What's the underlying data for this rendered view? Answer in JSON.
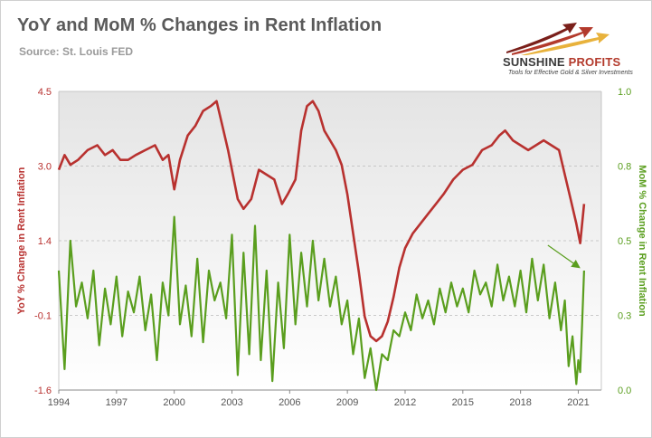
{
  "header": {
    "title": "YoY and MoM % Changes in Rent Inflation",
    "source": "Source: St. Louis FED"
  },
  "logo": {
    "word_main": "SUNSHINE",
    "word_accent": "PROFITS",
    "tagline": "Tools for Effective Gold & Silver Investments",
    "colors": {
      "arrow_dark": "#7a1f1a",
      "arrow_mid": "#b33a2c",
      "arrow_gold": "#e8b23c"
    }
  },
  "colors": {
    "yoy_line": "#b8312f",
    "mom_line": "#5a9e1e",
    "annotation_arrow": "#5a9e1e",
    "grid": "#bbbbbb",
    "plot_bg_top": "#e4e4e4",
    "plot_bg_bottom": "#ffffff"
  },
  "chart_data": {
    "type": "line",
    "title": "YoY and MoM % Changes in Rent Inflation",
    "xlabel": "",
    "ylabel": "YoY % Change in Rent Inflation",
    "y2label": "MoM % Change in Rent Inflation",
    "xlim": [
      1994,
      2022.2
    ],
    "ylim": [
      -1.6,
      4.5
    ],
    "y2lim": [
      0.0,
      1.0
    ],
    "x_ticks": [
      "1994",
      "1997",
      "2000",
      "2003",
      "2006",
      "2009",
      "2012",
      "2015",
      "2018",
      "2021"
    ],
    "y_ticks": [
      "4.5",
      "3.0",
      "1.4",
      "-0.1",
      "-1.6"
    ],
    "y2_ticks": [
      "1.0",
      "0.8",
      "0.5",
      "0.3",
      "0.0"
    ],
    "grid": "horizontal dashed",
    "annotation": "arrow pointing to latest MoM value",
    "series": [
      {
        "axis": "left",
        "x": [
          1994.0,
          1994.3,
          1994.6,
          1995.0,
          1995.5,
          1996.0,
          1996.4,
          1996.8,
          1997.2,
          1997.6,
          1998.0,
          1998.5,
          1999.0,
          1999.4,
          1999.7,
          2000.0,
          2000.3,
          2000.7,
          2001.1,
          2001.5,
          2001.9,
          2002.2,
          2002.5,
          2002.8,
          2003.0,
          2003.3,
          2003.6,
          2004.0,
          2004.4,
          2004.8,
          2005.2,
          2005.6,
          2005.9,
          2006.3,
          2006.6,
          2006.9,
          2007.2,
          2007.5,
          2007.8,
          2008.1,
          2008.4,
          2008.7,
          2009.0,
          2009.3,
          2009.6,
          2009.9,
          2010.2,
          2010.5,
          2010.8,
          2011.1,
          2011.4,
          2011.7,
          2012.0,
          2012.4,
          2012.8,
          2013.2,
          2013.6,
          2014.0,
          2014.5,
          2015.0,
          2015.5,
          2016.0,
          2016.5,
          2016.9,
          2017.2,
          2017.6,
          2018.0,
          2018.4,
          2018.8,
          2019.2,
          2019.6,
          2020.0,
          2020.3,
          2020.6,
          2020.9,
          2021.1,
          2021.3
        ],
        "values": [
          2.9,
          3.2,
          3.0,
          3.1,
          3.3,
          3.4,
          3.2,
          3.3,
          3.1,
          3.1,
          3.2,
          3.3,
          3.4,
          3.1,
          3.2,
          2.5,
          3.1,
          3.6,
          3.8,
          4.1,
          4.2,
          4.3,
          3.8,
          3.3,
          2.9,
          2.3,
          2.1,
          2.3,
          2.9,
          2.8,
          2.7,
          2.2,
          2.4,
          2.7,
          3.7,
          4.2,
          4.3,
          4.1,
          3.7,
          3.5,
          3.3,
          3.0,
          2.4,
          1.6,
          0.8,
          -0.1,
          -0.5,
          -0.6,
          -0.5,
          -0.2,
          0.3,
          0.9,
          1.3,
          1.6,
          1.8,
          2.0,
          2.2,
          2.4,
          2.7,
          2.9,
          3.0,
          3.3,
          3.4,
          3.6,
          3.7,
          3.5,
          3.4,
          3.3,
          3.4,
          3.5,
          3.4,
          3.3,
          2.8,
          2.3,
          1.8,
          1.4,
          2.2
        ]
      },
      {
        "axis": "right",
        "x": [
          1994.0,
          1994.3,
          1994.6,
          1994.9,
          1995.2,
          1995.5,
          1995.8,
          1996.1,
          1996.4,
          1996.7,
          1997.0,
          1997.3,
          1997.6,
          1997.9,
          1998.2,
          1998.5,
          1998.8,
          1999.1,
          1999.4,
          1999.7,
          2000.0,
          2000.3,
          2000.6,
          2000.9,
          2001.2,
          2001.5,
          2001.8,
          2002.1,
          2002.4,
          2002.7,
          2003.0,
          2003.3,
          2003.6,
          2003.9,
          2004.2,
          2004.5,
          2004.8,
          2005.1,
          2005.4,
          2005.7,
          2006.0,
          2006.3,
          2006.6,
          2006.9,
          2007.2,
          2007.5,
          2007.8,
          2008.1,
          2008.4,
          2008.7,
          2009.0,
          2009.3,
          2009.6,
          2009.9,
          2010.2,
          2010.5,
          2010.8,
          2011.1,
          2011.4,
          2011.7,
          2012.0,
          2012.3,
          2012.6,
          2012.9,
          2013.2,
          2013.5,
          2013.8,
          2014.1,
          2014.4,
          2014.7,
          2015.0,
          2015.3,
          2015.6,
          2015.9,
          2016.2,
          2016.5,
          2016.8,
          2017.1,
          2017.4,
          2017.7,
          2018.0,
          2018.3,
          2018.6,
          2018.9,
          2019.2,
          2019.5,
          2019.8,
          2020.1,
          2020.3,
          2020.5,
          2020.7,
          2020.9,
          2021.0,
          2021.1,
          2021.2,
          2021.3
        ],
        "values": [
          0.4,
          0.07,
          0.5,
          0.28,
          0.36,
          0.24,
          0.4,
          0.15,
          0.34,
          0.22,
          0.38,
          0.18,
          0.33,
          0.26,
          0.38,
          0.2,
          0.32,
          0.1,
          0.36,
          0.25,
          0.58,
          0.22,
          0.35,
          0.18,
          0.44,
          0.16,
          0.4,
          0.3,
          0.36,
          0.24,
          0.52,
          0.05,
          0.46,
          0.12,
          0.55,
          0.1,
          0.4,
          0.03,
          0.36,
          0.14,
          0.52,
          0.22,
          0.46,
          0.28,
          0.5,
          0.3,
          0.44,
          0.28,
          0.38,
          0.22,
          0.3,
          0.12,
          0.24,
          0.04,
          0.14,
          0.0,
          0.12,
          0.1,
          0.2,
          0.18,
          0.26,
          0.2,
          0.32,
          0.24,
          0.3,
          0.22,
          0.34,
          0.26,
          0.36,
          0.28,
          0.34,
          0.26,
          0.4,
          0.32,
          0.36,
          0.28,
          0.42,
          0.3,
          0.38,
          0.28,
          0.4,
          0.26,
          0.44,
          0.3,
          0.42,
          0.24,
          0.36,
          0.2,
          0.3,
          0.08,
          0.18,
          0.02,
          0.1,
          0.06,
          0.22,
          0.4
        ]
      }
    ]
  }
}
